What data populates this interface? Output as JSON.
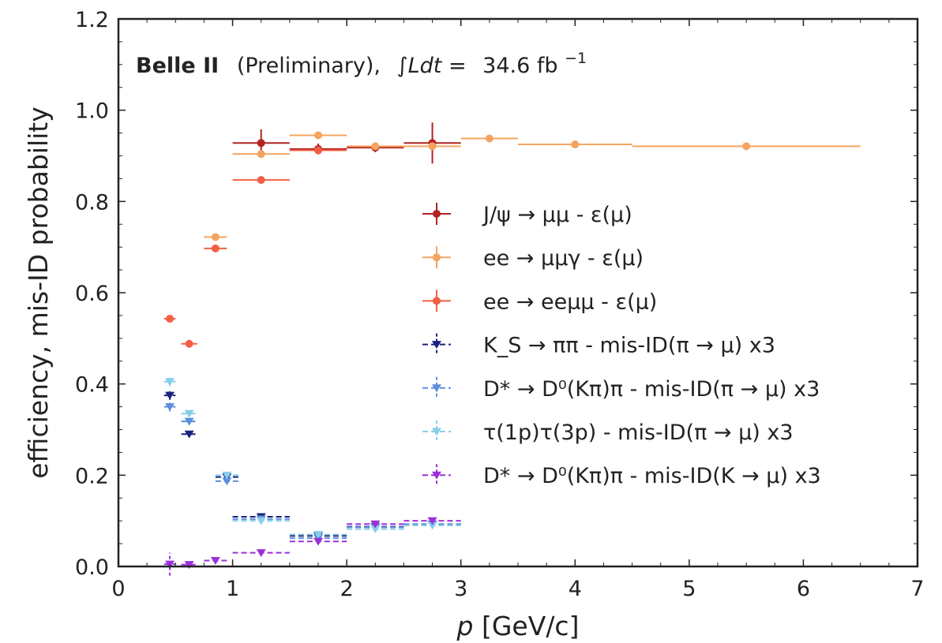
{
  "chart_data": {
    "type": "scatter",
    "xlabel": "p [GeV/c]",
    "ylabel": "efficiency, mis-ID probability",
    "xlim": [
      0,
      7
    ],
    "ylim": [
      0,
      1.2
    ],
    "xticks": [
      "0",
      "1",
      "2",
      "3",
      "4",
      "5",
      "6",
      "7"
    ],
    "yticks": [
      "0.0",
      "0.2",
      "0.4",
      "0.6",
      "0.8",
      "1.0",
      "1.2"
    ],
    "annotation": {
      "experiment": "Belle II",
      "status": "(Preliminary),",
      "lumi_label": "∫Ldt =",
      "lumi_value": "34.6 fb",
      "lumi_exp": "−1"
    },
    "legend_position": "center-right",
    "series": [
      {
        "name": "J/ψ → μμ - ε(μ)",
        "color": "#b22222",
        "marker": "circle",
        "dashed": false,
        "points": [
          {
            "x": 1.25,
            "y": 0.928,
            "xerr": 0.25,
            "yerr": 0.03
          },
          {
            "x": 1.75,
            "y": 0.915,
            "xerr": 0.25,
            "yerr": 0.012
          },
          {
            "x": 2.25,
            "y": 0.918,
            "xerr": 0.25,
            "yerr": 0.01
          },
          {
            "x": 2.75,
            "y": 0.928,
            "xerr": 0.25,
            "yerr": 0.045
          }
        ]
      },
      {
        "name": "ee → μμγ - ε(μ)",
        "color": "#f4a460",
        "marker": "circle",
        "dashed": false,
        "points": [
          {
            "x": 0.85,
            "y": 0.722,
            "xerr": 0.1,
            "yerr": 0.005
          },
          {
            "x": 1.25,
            "y": 0.904,
            "xerr": 0.25,
            "yerr": 0.005
          },
          {
            "x": 1.75,
            "y": 0.945,
            "xerr": 0.25,
            "yerr": 0.004
          },
          {
            "x": 2.25,
            "y": 0.921,
            "xerr": 0.25,
            "yerr": 0.004
          },
          {
            "x": 2.75,
            "y": 0.921,
            "xerr": 0.25,
            "yerr": 0.004
          },
          {
            "x": 3.25,
            "y": 0.938,
            "xerr": 0.25,
            "yerr": 0.004
          },
          {
            "x": 4.0,
            "y": 0.925,
            "xerr": 0.5,
            "yerr": 0.003
          },
          {
            "x": 5.5,
            "y": 0.921,
            "xerr": 1.0,
            "yerr": 0.003
          }
        ]
      },
      {
        "name": "ee → eeμμ - ε(μ)",
        "color": "#f35f45",
        "marker": "circle",
        "dashed": false,
        "points": [
          {
            "x": 0.45,
            "y": 0.543,
            "xerr": 0.05,
            "yerr": 0.005
          },
          {
            "x": 0.62,
            "y": 0.488,
            "xerr": 0.07,
            "yerr": 0.005
          },
          {
            "x": 0.85,
            "y": 0.697,
            "xerr": 0.1,
            "yerr": 0.005
          },
          {
            "x": 1.25,
            "y": 0.847,
            "xerr": 0.25,
            "yerr": 0.005
          },
          {
            "x": 1.75,
            "y": 0.912,
            "xerr": 0.25,
            "yerr": 0.006
          }
        ]
      },
      {
        "name": "K_S → ππ - mis-ID(π → μ) x3",
        "color": "#1a237e",
        "marker": "triangle-down",
        "dashed": true,
        "points": [
          {
            "x": 0.45,
            "y": 0.375,
            "xerr": 0.05,
            "yerr": 0.01
          },
          {
            "x": 0.62,
            "y": 0.29,
            "xerr": 0.07,
            "yerr": 0.005
          },
          {
            "x": 0.95,
            "y": 0.196,
            "xerr": 0.1,
            "yerr": 0.005
          },
          {
            "x": 1.25,
            "y": 0.109,
            "xerr": 0.25,
            "yerr": 0.003
          },
          {
            "x": 1.75,
            "y": 0.067,
            "xerr": 0.25,
            "yerr": 0.003
          },
          {
            "x": 2.25,
            "y": 0.087,
            "xerr": 0.25,
            "yerr": 0.003
          },
          {
            "x": 2.75,
            "y": 0.092,
            "xerr": 0.25,
            "yerr": 0.003
          }
        ]
      },
      {
        "name": "D* → D⁰(Kπ)π - mis-ID(π → μ) x3",
        "color": "#5b8fd9",
        "marker": "triangle-down",
        "dashed": true,
        "points": [
          {
            "x": 0.45,
            "y": 0.35,
            "xerr": 0.05,
            "yerr": 0.01
          },
          {
            "x": 0.62,
            "y": 0.318,
            "xerr": 0.07,
            "yerr": 0.005
          },
          {
            "x": 0.95,
            "y": 0.187,
            "xerr": 0.1,
            "yerr": 0.005
          },
          {
            "x": 1.25,
            "y": 0.104,
            "xerr": 0.25,
            "yerr": 0.003
          },
          {
            "x": 1.75,
            "y": 0.062,
            "xerr": 0.25,
            "yerr": 0.003
          },
          {
            "x": 2.25,
            "y": 0.086,
            "xerr": 0.25,
            "yerr": 0.003
          },
          {
            "x": 2.75,
            "y": 0.093,
            "xerr": 0.25,
            "yerr": 0.003
          }
        ]
      },
      {
        "name": "τ(1p)τ(3p) - mis-ID(π → μ) x3",
        "color": "#87ceeb",
        "marker": "triangle-down",
        "dashed": true,
        "points": [
          {
            "x": 0.45,
            "y": 0.405,
            "xerr": 0.05,
            "yerr": 0.01
          },
          {
            "x": 0.62,
            "y": 0.335,
            "xerr": 0.07,
            "yerr": 0.005
          },
          {
            "x": 0.95,
            "y": 0.2,
            "xerr": 0.1,
            "yerr": 0.005
          },
          {
            "x": 1.25,
            "y": 0.1,
            "xerr": 0.25,
            "yerr": 0.003
          },
          {
            "x": 1.75,
            "y": 0.07,
            "xerr": 0.25,
            "yerr": 0.003
          },
          {
            "x": 2.25,
            "y": 0.082,
            "xerr": 0.25,
            "yerr": 0.003
          },
          {
            "x": 2.75,
            "y": 0.09,
            "xerr": 0.25,
            "yerr": 0.003
          }
        ]
      },
      {
        "name": "D* → D⁰(Kπ)π - mis-ID(K → μ) x3",
        "color": "#9b30d9",
        "marker": "triangle-down",
        "dashed": true,
        "points": [
          {
            "x": 0.45,
            "y": 0.005,
            "xerr": 0.05,
            "yerr": 0.025
          },
          {
            "x": 0.62,
            "y": 0.004,
            "xerr": 0.07,
            "yerr": 0.005
          },
          {
            "x": 0.85,
            "y": 0.013,
            "xerr": 0.1,
            "yerr": 0.004
          },
          {
            "x": 1.25,
            "y": 0.03,
            "xerr": 0.25,
            "yerr": 0.003
          },
          {
            "x": 1.75,
            "y": 0.055,
            "xerr": 0.25,
            "yerr": 0.003
          },
          {
            "x": 2.25,
            "y": 0.093,
            "xerr": 0.25,
            "yerr": 0.003
          },
          {
            "x": 2.75,
            "y": 0.1,
            "xerr": 0.25,
            "yerr": 0.003
          }
        ]
      }
    ]
  }
}
